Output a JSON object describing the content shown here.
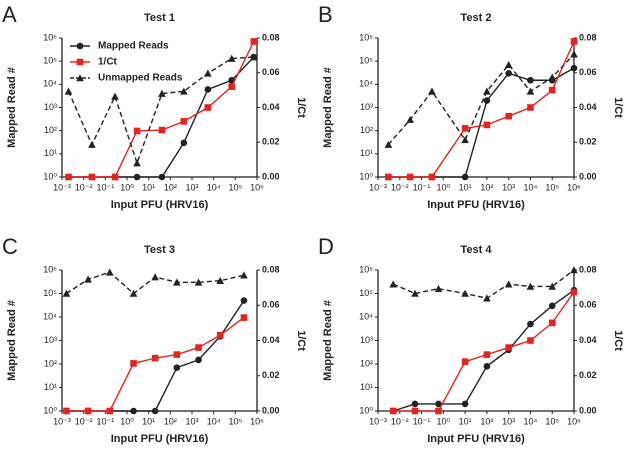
{
  "chart_data": [
    {
      "type": "line",
      "panel_label": "A",
      "title": "Test 1",
      "x_label": "Input PFU  (HRV16)",
      "y_label": "Mapped Read #",
      "y2_label": "1/Ct",
      "xscale": "log",
      "yscale": "log",
      "legend": "upper left",
      "xlim": [
        0.001,
        1000000
      ],
      "ylim": [
        1,
        1000000
      ],
      "y2lim": [
        0,
        0.08
      ],
      "xticks": [
        {
          "value": 0.001,
          "label": "10⁻³"
        },
        {
          "value": 0.01,
          "label": "10⁻²"
        },
        {
          "value": 0.1,
          "label": "10⁻¹"
        },
        {
          "value": 1,
          "label": "10⁰"
        },
        {
          "value": 10,
          "label": "10¹"
        },
        {
          "value": 100,
          "label": "10²"
        },
        {
          "value": 1000,
          "label": "10³"
        },
        {
          "value": 10000,
          "label": "10⁴"
        },
        {
          "value": 100000,
          "label": "10⁵"
        },
        {
          "value": 1000000,
          "label": "10⁶"
        }
      ],
      "yticks": [
        {
          "value": 1,
          "label": "10⁰"
        },
        {
          "value": 10,
          "label": "10¹"
        },
        {
          "value": 100,
          "label": "10²"
        },
        {
          "value": 1000,
          "label": "10³"
        },
        {
          "value": 10000,
          "label": "10⁴"
        },
        {
          "value": 100000,
          "label": "10⁵"
        },
        {
          "value": 1000000,
          "label": "10⁶"
        }
      ],
      "y2ticks": [
        {
          "value": 0,
          "label": "0.00"
        },
        {
          "value": 0.02,
          "label": "0.02"
        },
        {
          "value": 0.04,
          "label": "0.04"
        },
        {
          "value": 0.06,
          "label": "0.06"
        },
        {
          "value": 0.08,
          "label": "0.08"
        }
      ],
      "x": [
        0.002,
        0.024,
        0.28,
        2.9,
        41,
        420,
        5400,
        68000,
        710000
      ],
      "series": [
        {
          "name": "Mapped Reads",
          "color": "#222222",
          "marker": "circle",
          "dashed": false,
          "values": [
            1,
            1,
            1,
            1,
            1,
            30,
            6000,
            15000,
            150000
          ]
        },
        {
          "name": "1/Ct",
          "color": "#e8231f",
          "marker": "square",
          "dashed": false,
          "axis": "y2",
          "values": [
            0,
            0,
            0,
            0.0265,
            0.027,
            0.032,
            0.04,
            0.052,
            0.078
          ]
        },
        {
          "name": "Unmapped Reads",
          "color": "#222222",
          "marker": "triangle",
          "dashed": true,
          "values": [
            5000,
            25,
            3000,
            4,
            4000,
            5000,
            30000,
            130000,
            150000
          ]
        }
      ]
    },
    {
      "type": "line",
      "panel_label": "B",
      "title": "Test 2",
      "x_label": "Input PFU  (HRV16)",
      "y_label": "Mapped Read #",
      "y2_label": "1/Ct",
      "xscale": "log",
      "yscale": "log",
      "xlim": [
        0.001,
        1000000
      ],
      "ylim": [
        1,
        1000000
      ],
      "y2lim": [
        0,
        0.08
      ],
      "xticks": [
        {
          "value": 0.001,
          "label": "10⁻³"
        },
        {
          "value": 0.01,
          "label": "10⁻²"
        },
        {
          "value": 0.1,
          "label": "10⁻¹"
        },
        {
          "value": 1,
          "label": "10⁰"
        },
        {
          "value": 10,
          "label": "10¹"
        },
        {
          "value": 100,
          "label": "10²"
        },
        {
          "value": 1000,
          "label": "10³"
        },
        {
          "value": 10000,
          "label": "10⁴"
        },
        {
          "value": 100000,
          "label": "10⁵"
        },
        {
          "value": 1000000,
          "label": "10⁶"
        }
      ],
      "yticks": [
        {
          "value": 1,
          "label": "10⁰"
        },
        {
          "value": 10,
          "label": "10¹"
        },
        {
          "value": 100,
          "label": "10²"
        },
        {
          "value": 1000,
          "label": "10³"
        },
        {
          "value": 10000,
          "label": "10⁴"
        },
        {
          "value": 100000,
          "label": "10⁵"
        },
        {
          "value": 1000000,
          "label": "10⁶"
        }
      ],
      "y2ticks": [
        {
          "value": 0,
          "label": "0.00"
        },
        {
          "value": 0.02,
          "label": "0.02"
        },
        {
          "value": 0.04,
          "label": "0.04"
        },
        {
          "value": 0.06,
          "label": "0.06"
        },
        {
          "value": 0.08,
          "label": "0.08"
        }
      ],
      "x": [
        0.003,
        0.03,
        0.3,
        10,
        100,
        1000,
        10000,
        100000,
        1000000
      ],
      "series": [
        {
          "color": "#222222",
          "marker": "circle",
          "dashed": false,
          "values": [
            1,
            1,
            1,
            1,
            2000,
            30000,
            15000,
            15000,
            50000
          ]
        },
        {
          "color": "#e8231f",
          "marker": "square",
          "dashed": false,
          "axis": "y2",
          "values": [
            0,
            0,
            0,
            0.028,
            0.03,
            0.035,
            0.04,
            0.05,
            0.078
          ]
        },
        {
          "color": "#222222",
          "marker": "triangle",
          "dashed": true,
          "values": [
            25,
            300,
            5000,
            40,
            5000,
            70000,
            5000,
            20000,
            200000
          ]
        }
      ]
    },
    {
      "type": "line",
      "panel_label": "C",
      "title": "Test 3",
      "x_label": "Input PFU  (HRV16)",
      "y_label": "Mapped Read #",
      "y2_label": "1/Ct",
      "xscale": "log",
      "yscale": "log",
      "xlim": [
        0.001,
        1000000
      ],
      "ylim": [
        1,
        1000000
      ],
      "y2lim": [
        0,
        0.08
      ],
      "xticks": [
        {
          "value": 0.001,
          "label": "10⁻³"
        },
        {
          "value": 0.01,
          "label": "10⁻²"
        },
        {
          "value": 0.1,
          "label": "10⁻¹"
        },
        {
          "value": 1,
          "label": "10⁰"
        },
        {
          "value": 10,
          "label": "10¹"
        },
        {
          "value": 100,
          "label": "10²"
        },
        {
          "value": 1000,
          "label": "10³"
        },
        {
          "value": 10000,
          "label": "10⁴"
        },
        {
          "value": 100000,
          "label": "10⁵"
        },
        {
          "value": 1000000,
          "label": "10⁶"
        }
      ],
      "yticks": [
        {
          "value": 1,
          "label": "10⁰"
        },
        {
          "value": 10,
          "label": "10¹"
        },
        {
          "value": 100,
          "label": "10²"
        },
        {
          "value": 1000,
          "label": "10³"
        },
        {
          "value": 10000,
          "label": "10⁴"
        },
        {
          "value": 100000,
          "label": "10⁵"
        },
        {
          "value": 1000000,
          "label": "10⁶"
        }
      ],
      "y2ticks": [
        {
          "value": 0,
          "label": "0.00"
        },
        {
          "value": 0.02,
          "label": "0.02"
        },
        {
          "value": 0.04,
          "label": "0.04"
        },
        {
          "value": 0.06,
          "label": "0.06"
        },
        {
          "value": 0.08,
          "label": "0.08"
        }
      ],
      "x": [
        0.0016,
        0.016,
        0.16,
        2,
        20,
        200,
        2000,
        20000,
        250000
      ],
      "series": [
        {
          "color": "#222222",
          "marker": "circle",
          "dashed": false,
          "values": [
            1,
            1,
            1,
            1,
            1,
            70,
            150,
            1500,
            50000
          ]
        },
        {
          "color": "#e8231f",
          "marker": "square",
          "dashed": false,
          "axis": "y2",
          "values": [
            0,
            0,
            0,
            0.027,
            0.03,
            0.032,
            0.036,
            0.043,
            0.053
          ]
        },
        {
          "color": "#222222",
          "marker": "triangle",
          "dashed": true,
          "values": [
            100000,
            400000,
            800000,
            100000,
            500000,
            300000,
            300000,
            350000,
            600000
          ]
        }
      ]
    },
    {
      "type": "line",
      "panel_label": "D",
      "title": "Test 4",
      "x_label": "Input PFU  (HRV16)",
      "y_label": "Mapped Read #",
      "y2_label": "1/Ct",
      "xscale": "log",
      "yscale": "log",
      "xlim": [
        0.001,
        1000000
      ],
      "ylim": [
        1,
        1000000
      ],
      "y2lim": [
        0,
        0.08
      ],
      "xticks": [
        {
          "value": 0.001,
          "label": "10⁻³"
        },
        {
          "value": 0.01,
          "label": "10⁻²"
        },
        {
          "value": 0.1,
          "label": "10⁻¹"
        },
        {
          "value": 1,
          "label": "10⁰"
        },
        {
          "value": 10,
          "label": "10¹"
        },
        {
          "value": 100,
          "label": "10²"
        },
        {
          "value": 1000,
          "label": "10³"
        },
        {
          "value": 10000,
          "label": "10⁴"
        },
        {
          "value": 100000,
          "label": "10⁵"
        },
        {
          "value": 1000000,
          "label": "10⁶"
        }
      ],
      "yticks": [
        {
          "value": 1,
          "label": "10⁰"
        },
        {
          "value": 10,
          "label": "10¹"
        },
        {
          "value": 100,
          "label": "10²"
        },
        {
          "value": 1000,
          "label": "10³"
        },
        {
          "value": 10000,
          "label": "10⁴"
        },
        {
          "value": 100000,
          "label": "10⁵"
        },
        {
          "value": 1000000,
          "label": "10⁶"
        }
      ],
      "y2ticks": [
        {
          "value": 0,
          "label": "0.00"
        },
        {
          "value": 0.02,
          "label": "0.02"
        },
        {
          "value": 0.04,
          "label": "0.04"
        },
        {
          "value": 0.06,
          "label": "0.06"
        },
        {
          "value": 0.08,
          "label": "0.08"
        }
      ],
      "x": [
        0.005,
        0.05,
        0.6,
        10,
        100,
        1000,
        10000,
        100000,
        1000000
      ],
      "series": [
        {
          "color": "#222222",
          "marker": "circle",
          "dashed": false,
          "values": [
            1,
            2,
            2,
            2,
            80,
            400,
            5000,
            30000,
            140000
          ]
        },
        {
          "color": "#e8231f",
          "marker": "square",
          "dashed": false,
          "axis": "y2",
          "values": [
            0,
            0,
            0,
            0.028,
            0.032,
            0.036,
            0.04,
            0.05,
            0.0675
          ]
        },
        {
          "color": "#222222",
          "marker": "triangle",
          "dashed": true,
          "values": [
            250000,
            100000,
            160000,
            100000,
            63000,
            250000,
            200000,
            200000,
            1000000
          ]
        }
      ]
    }
  ]
}
